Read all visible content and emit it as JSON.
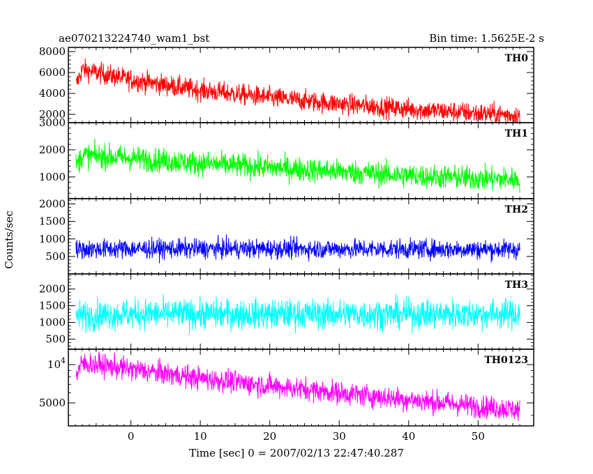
{
  "header": {
    "title": "ae070213224740_wam1_bst",
    "bin_time": "Bin time: 1.5625E-2 s"
  },
  "chart_data": [
    {
      "type": "line",
      "panel": "TH0",
      "color": "#ff0000",
      "ylim": [
        1200,
        8400
      ],
      "yticks": [
        2000,
        4000,
        6000,
        8000
      ],
      "ytick_labels": [
        "2000",
        "4000",
        "6000",
        "8000"
      ],
      "trend": {
        "x": [
          -7.9,
          -7,
          -5,
          0,
          10,
          20,
          30,
          40,
          50,
          56
        ],
        "y": [
          4800,
          6300,
          6000,
          5300,
          4300,
          3600,
          3000,
          2500,
          2100,
          1900
        ]
      },
      "spread": 1000,
      "xlim": [
        -9,
        58
      ]
    },
    {
      "type": "line",
      "panel": "TH1",
      "color": "#00ff00",
      "ylim": [
        200,
        3000
      ],
      "yticks": [
        1000,
        2000,
        3000
      ],
      "ytick_labels": [
        "1000",
        "2000",
        "3000"
      ],
      "trend": {
        "x": [
          -7.9,
          -7,
          0,
          10,
          20,
          30,
          40,
          50,
          56
        ],
        "y": [
          1400,
          1800,
          1700,
          1500,
          1350,
          1200,
          1050,
          950,
          900
        ]
      },
      "spread": 450,
      "xlim": [
        -9,
        58
      ]
    },
    {
      "type": "line",
      "panel": "TH2",
      "color": "#0000ff",
      "ylim": [
        0,
        2150
      ],
      "yticks": [
        500,
        1000,
        1500,
        2000
      ],
      "ytick_labels": [
        "500",
        "1000",
        "1500",
        "2000"
      ],
      "trend": {
        "x": [
          -7.9,
          0,
          20,
          40,
          56
        ],
        "y": [
          700,
          720,
          720,
          710,
          700
        ]
      },
      "spread": 280,
      "xlim": [
        -9,
        58
      ]
    },
    {
      "type": "line",
      "panel": "TH3",
      "color": "#00ffff",
      "ylim": [
        200,
        2450
      ],
      "yticks": [
        500,
        1000,
        1500,
        2000
      ],
      "ytick_labels": [
        "500",
        "1000",
        "1500",
        "2000"
      ],
      "trend": {
        "x": [
          -7.9,
          0,
          20,
          40,
          56
        ],
        "y": [
          1200,
          1250,
          1250,
          1250,
          1250
        ]
      },
      "spread": 450,
      "xlim": [
        -9,
        58
      ]
    },
    {
      "type": "line",
      "panel": "TH0123",
      "color": "#ff00ff",
      "yscale": "log",
      "ylim": [
        3300,
        13200
      ],
      "yticks": [
        5000,
        10000
      ],
      "ytick_labels": [
        "5000",
        "10^4"
      ],
      "trend": {
        "x": [
          -7.9,
          -7,
          -5,
          0,
          10,
          20,
          30,
          40,
          50,
          56
        ],
        "y": [
          8200,
          10200,
          10000,
          9200,
          7800,
          6800,
          6000,
          5300,
          4700,
          4400
        ]
      },
      "spread": 0.09,
      "xlim": [
        -9,
        58
      ]
    }
  ],
  "x_axis": {
    "label": "Time [sec] 0 = 2007/02/13 22:47:40.287",
    "ticks": [
      0,
      10,
      20,
      30,
      40,
      50
    ],
    "tick_labels": [
      "0",
      "10",
      "20",
      "30",
      "40",
      "50"
    ]
  },
  "y_axis": {
    "label": "Counts/sec"
  }
}
